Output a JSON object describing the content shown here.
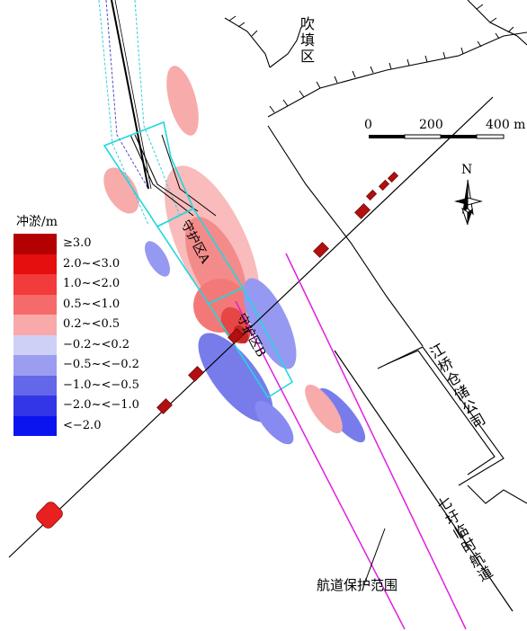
{
  "labels": {
    "blowfill_area": "吹填区",
    "warehouse": "江桥仓储公司",
    "temp_channel": "七圩临时航道",
    "channel_protection": "航道保护范围",
    "zone_a": "守护区A",
    "zone_b": "守护区B",
    "north": "N"
  },
  "scale": {
    "ticks": [
      "0",
      "200",
      "400 m"
    ]
  },
  "legend": {
    "title": "冲淤/m",
    "items": [
      {
        "label": "≥3.0",
        "color": "#b30000"
      },
      {
        "label": "2.0~<3.0",
        "color": "#e60f0f"
      },
      {
        "label": "1.0~<2.0",
        "color": "#f23b3b"
      },
      {
        "label": "0.5~<1.0",
        "color": "#f56b6b"
      },
      {
        "label": "0.2~<0.5",
        "color": "#f9a9a9"
      },
      {
        "label": "−0.2~<0.2",
        "color": "#cfd0f5"
      },
      {
        "label": "−0.5~<−0.2",
        "color": "#9b9df0"
      },
      {
        "label": "−1.0~<−0.5",
        "color": "#6467ea"
      },
      {
        "label": "−2.0~<−1.0",
        "color": "#3236e6"
      },
      {
        "label": "<−2.0",
        "color": "#0a14f0"
      }
    ]
  },
  "colors": {
    "protection_line": "#e020e0",
    "zone_outline": "#20d8e0",
    "pier": "#b01010"
  }
}
